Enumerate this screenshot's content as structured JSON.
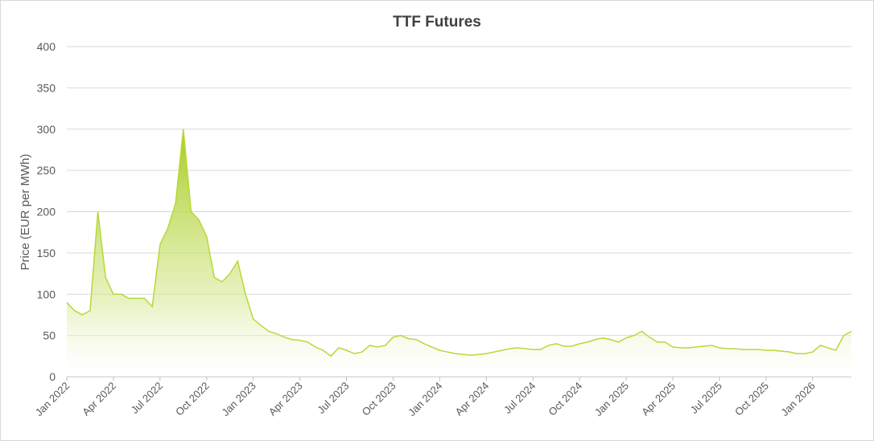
{
  "chart_data": {
    "type": "area",
    "title": "TTF Futures",
    "y_label": "Price (EUR per MWh)",
    "color": "#b7d83a",
    "categories": [
      "Jan 2022",
      null,
      null,
      null,
      null,
      null,
      "Apr 2022",
      null,
      null,
      null,
      null,
      null,
      "Jul 2022",
      null,
      null,
      null,
      null,
      null,
      "Oct 2022",
      null,
      null,
      null,
      null,
      null,
      "Jan 2023",
      null,
      null,
      null,
      null,
      null,
      "Apr 2023",
      null,
      null,
      null,
      null,
      null,
      "Jul 2023",
      null,
      null,
      null,
      null,
      null,
      "Oct 2023",
      null,
      null,
      null,
      null,
      null,
      "Jan 2024",
      null,
      null,
      null,
      null,
      null,
      "Apr 2024",
      null,
      null,
      null,
      null,
      null,
      "Jul 2024",
      null,
      null,
      null,
      null,
      null,
      "Oct 2024",
      null,
      null,
      null,
      null,
      null,
      "Jan 2025",
      null,
      null,
      null,
      null,
      null,
      "Apr 2025",
      null,
      null,
      null,
      null,
      null,
      "Jul 2025",
      null,
      null,
      null,
      null,
      null,
      "Oct 2025",
      null,
      null,
      null,
      null,
      null,
      "Jan 2026",
      null,
      null,
      null,
      null,
      null
    ],
    "values": [
      90,
      80,
      75,
      80,
      200,
      120,
      100,
      100,
      95,
      95,
      95,
      85,
      160,
      180,
      210,
      300,
      200,
      190,
      170,
      120,
      115,
      125,
      140,
      100,
      70,
      62,
      55,
      52,
      48,
      45,
      44,
      42,
      36,
      32,
      25,
      35,
      32,
      28,
      30,
      38,
      36,
      38,
      48,
      50,
      46,
      45,
      40,
      36,
      32,
      30,
      28,
      27,
      26,
      27,
      28,
      30,
      32,
      34,
      35,
      34,
      33,
      33,
      38,
      40,
      37,
      37,
      40,
      42,
      45,
      47,
      45,
      42,
      47,
      50,
      55,
      48,
      42,
      42,
      36,
      35,
      35,
      36,
      37,
      38,
      35,
      34,
      34,
      33,
      33,
      33,
      32,
      32,
      31,
      30,
      28,
      28,
      30,
      38,
      35,
      32,
      50,
      55
    ],
    "ylim": [
      0,
      400
    ],
    "yticks": [
      0,
      50,
      100,
      150,
      200,
      250,
      300,
      350,
      400
    ],
    "grid": true
  }
}
